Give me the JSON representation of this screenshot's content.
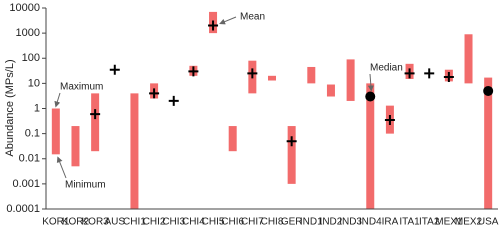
{
  "chart_data": {
    "type": "range",
    "y_label": "Abundance (MPs/L)",
    "categories": [
      "KOR1",
      "KOR2",
      "KOR3",
      "AUS",
      "CHI1",
      "CHI2",
      "CHI3",
      "CHI4",
      "CHI5",
      "CHI6",
      "CHI7",
      "CHI8",
      "GER",
      "IND1",
      "IND2",
      "IND3",
      "IND4",
      "IRA",
      "ITA1",
      "ITA2",
      "MEX1",
      "MEX2",
      "USA"
    ],
    "max": [
      1,
      0.2,
      4,
      null,
      4,
      10,
      null,
      50,
      7000,
      0.2,
      80,
      20,
      0.2,
      45,
      9,
      90,
      10,
      1.3,
      60,
      null,
      35,
      900,
      17
    ],
    "min": [
      0.015,
      0.005,
      0.02,
      null,
      0.0001,
      2.5,
      null,
      20,
      1000,
      0.02,
      4,
      13,
      0.001,
      10,
      3,
      2,
      0.0001,
      0.1,
      15,
      null,
      12,
      10,
      0.0001
    ],
    "mean": [
      null,
      null,
      0.6,
      35,
      null,
      4,
      2,
      30,
      2000,
      null,
      25,
      null,
      0.05,
      null,
      null,
      null,
      null,
      0.35,
      25,
      25,
      18,
      null,
      null
    ],
    "median": [
      null,
      null,
      null,
      null,
      null,
      null,
      null,
      null,
      null,
      null,
      null,
      null,
      null,
      null,
      null,
      null,
      3,
      null,
      null,
      null,
      null,
      null,
      5
    ],
    "color": "#f26b6b",
    "log": true,
    "ylim": [
      0.0001,
      10000
    ],
    "yticks": [
      0.0001,
      0.001,
      0.01,
      0.1,
      1,
      10,
      100,
      1000,
      10000
    ],
    "annotations": [
      "Maximum",
      "Minimum",
      "Mean",
      "Median"
    ]
  }
}
